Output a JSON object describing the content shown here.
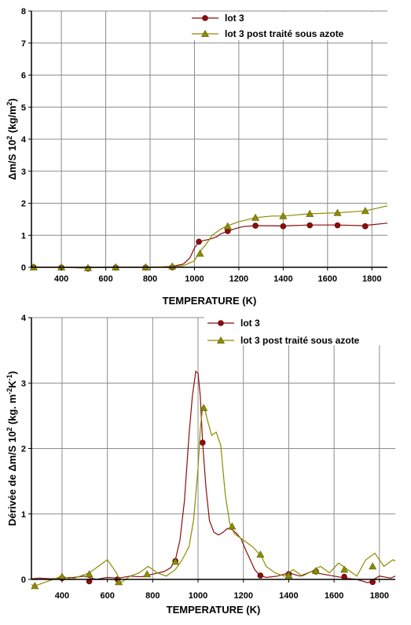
{
  "colors": {
    "series1": "#8b0d0d",
    "series2": "#8c8c00",
    "grid": "#8c8c8c",
    "axis": "#000000"
  },
  "chart_data": [
    {
      "type": "line",
      "title": "",
      "xlabel": "TEMPERATURE (K)",
      "ylabel_main": "Δm/S 10",
      "ylabel_sup1": "2",
      "ylabel_mid": " (kg/m",
      "ylabel_sup2": "2",
      "ylabel_end": ")",
      "xlim": [
        265,
        1870
      ],
      "ylim": [
        0,
        8
      ],
      "xticks": [
        400,
        600,
        800,
        1000,
        1200,
        1400,
        1600,
        1800
      ],
      "xtick_labels": [
        "400",
        "600",
        "800",
        "1000",
        "1200",
        "1400",
        "1600",
        "1800"
      ],
      "yticks": [
        0,
        1,
        2,
        3,
        4,
        5,
        6,
        7,
        8
      ],
      "ytick_labels": [
        "0",
        "1",
        "2",
        "3",
        "4",
        "5",
        "6",
        "7",
        "8"
      ],
      "grid": true,
      "legend_position": "top-right",
      "series": [
        {
          "name": "lot 3",
          "marker": "circle",
          "x": [
            265,
            300,
            400,
            500,
            600,
            700,
            800,
            850,
            900,
            950,
            980,
            1000,
            1020,
            1050,
            1080,
            1100,
            1120,
            1150,
            1180,
            1220,
            1280,
            1400,
            1520,
            1640,
            1760,
            1870
          ],
          "y": [
            0,
            0,
            0,
            -0.02,
            0,
            0,
            0,
            0.01,
            0.03,
            0.1,
            0.3,
            0.6,
            0.8,
            0.85,
            0.9,
            0.95,
            1.05,
            1.12,
            1.2,
            1.27,
            1.3,
            1.29,
            1.32,
            1.32,
            1.3,
            1.38
          ],
          "markers_x": [
            275,
            400,
            520,
            645,
            780,
            900,
            1020,
            1150,
            1275,
            1400,
            1520,
            1645,
            1770
          ],
          "markers_y": [
            0,
            -0.01,
            -0.04,
            -0.01,
            -0.01,
            0,
            0.8,
            1.13,
            1.3,
            1.28,
            1.31,
            1.31,
            1.28
          ]
        },
        {
          "name": "lot 3 post traité sous azote",
          "marker": "triangle",
          "x": [
            265,
            300,
            400,
            500,
            600,
            700,
            800,
            850,
            900,
            950,
            1000,
            1020,
            1050,
            1080,
            1120,
            1150,
            1200,
            1275,
            1350,
            1400,
            1520,
            1645,
            1770,
            1870
          ],
          "y": [
            0,
            0,
            0,
            -0.02,
            0,
            0,
            0,
            0.01,
            0.02,
            0.05,
            0.2,
            0.45,
            0.7,
            1.0,
            1.2,
            1.3,
            1.42,
            1.55,
            1.6,
            1.6,
            1.67,
            1.7,
            1.76,
            1.92
          ],
          "markers_x": [
            275,
            400,
            520,
            645,
            780,
            900,
            1025,
            1150,
            1275,
            1400,
            1520,
            1645,
            1770
          ],
          "markers_y": [
            0,
            0,
            -0.02,
            0,
            0,
            0.03,
            0.43,
            1.28,
            1.55,
            1.6,
            1.67,
            1.7,
            1.76
          ]
        }
      ]
    },
    {
      "type": "line",
      "title": "",
      "xlabel": "TEMPERATURE (K)",
      "ylabel_main": "Dérivée de Δm/S 10",
      "ylabel_sup1": "2",
      "ylabel_mid": " (kg. m",
      "ylabel_sup2": "-2",
      "ylabel_mid2": "K",
      "ylabel_sup3": "-1",
      "ylabel_end": ")",
      "xlim": [
        265,
        1870
      ],
      "ylim": [
        0,
        4
      ],
      "xticks": [
        400,
        600,
        800,
        1000,
        1200,
        1400,
        1600,
        1800
      ],
      "xtick_labels": [
        "400",
        "600",
        "800",
        "1000",
        "1200",
        "1400",
        "1600",
        "1800"
      ],
      "yticks": [
        0,
        1,
        2,
        3,
        4
      ],
      "ytick_labels": [
        "0",
        "1",
        "2",
        "3",
        "4"
      ],
      "grid": true,
      "legend_position": "top-right",
      "series": [
        {
          "name": "lot 3",
          "marker": "circle",
          "x": [
            265,
            300,
            350,
            400,
            450,
            500,
            550,
            600,
            650,
            700,
            750,
            800,
            850,
            880,
            900,
            920,
            940,
            960,
            975,
            990,
            1000,
            1010,
            1020,
            1035,
            1050,
            1070,
            1090,
            1110,
            1130,
            1150,
            1170,
            1190,
            1210,
            1230,
            1250,
            1270,
            1300,
            1350,
            1400,
            1450,
            1500,
            1550,
            1600,
            1650,
            1700,
            1750,
            1800,
            1850,
            1870
          ],
          "y": [
            0.01,
            0.02,
            0.01,
            0.02,
            0.03,
            0.05,
            0.0,
            0.03,
            0.02,
            0.05,
            0.04,
            0.08,
            0.12,
            0.18,
            0.3,
            0.6,
            1.2,
            2.2,
            2.8,
            3.18,
            3.15,
            2.8,
            2.1,
            1.4,
            0.9,
            0.72,
            0.68,
            0.72,
            0.78,
            0.76,
            0.7,
            0.62,
            0.45,
            0.3,
            0.15,
            0.07,
            0.03,
            0.05,
            0.1,
            0.05,
            0.12,
            0.08,
            0.05,
            0.02,
            0.0,
            -0.05,
            0.05,
            0.02,
            0.05
          ],
          "markers_x": [
            400,
            520,
            645,
            900,
            1020,
            1275,
            1400,
            1520,
            1645,
            1770
          ],
          "markers_y": [
            0.02,
            -0.03,
            0.0,
            0.28,
            2.09,
            0.06,
            0.08,
            0.12,
            0.04,
            -0.04
          ]
        },
        {
          "name": "lot 3 post traité sous azote",
          "marker": "triangle",
          "x": [
            265,
            280,
            320,
            360,
            400,
            440,
            480,
            520,
            560,
            600,
            640,
            660,
            700,
            740,
            780,
            820,
            860,
            900,
            930,
            960,
            980,
            1000,
            1010,
            1020,
            1030,
            1040,
            1060,
            1080,
            1100,
            1120,
            1140,
            1160,
            1200,
            1240,
            1280,
            1300,
            1340,
            1380,
            1420,
            1460,
            1500,
            1540,
            1580,
            1620,
            1660,
            1700,
            1740,
            1780,
            1820,
            1860,
            1870
          ],
          "y": [
            -0.08,
            -0.1,
            -0.05,
            0.0,
            0.05,
            0.0,
            0.05,
            0.1,
            0.2,
            0.3,
            0.1,
            -0.05,
            0.05,
            0.1,
            0.2,
            0.1,
            0.05,
            0.15,
            0.3,
            0.5,
            0.9,
            1.7,
            2.3,
            2.62,
            2.6,
            2.45,
            2.2,
            2.25,
            2.05,
            1.3,
            0.85,
            0.7,
            0.6,
            0.5,
            0.35,
            0.2,
            0.1,
            0.05,
            0.15,
            0.05,
            0.12,
            0.2,
            0.1,
            0.25,
            0.15,
            0.05,
            0.3,
            0.4,
            0.2,
            0.3,
            0.28
          ],
          "markers_x": [
            280,
            400,
            520,
            650,
            775,
            900,
            1025,
            1150,
            1275,
            1400,
            1520,
            1645,
            1770
          ],
          "markers_y": [
            -0.1,
            0.04,
            0.08,
            -0.04,
            0.08,
            0.27,
            2.62,
            0.81,
            0.38,
            0.06,
            0.13,
            0.15,
            0.2
          ]
        }
      ]
    }
  ]
}
